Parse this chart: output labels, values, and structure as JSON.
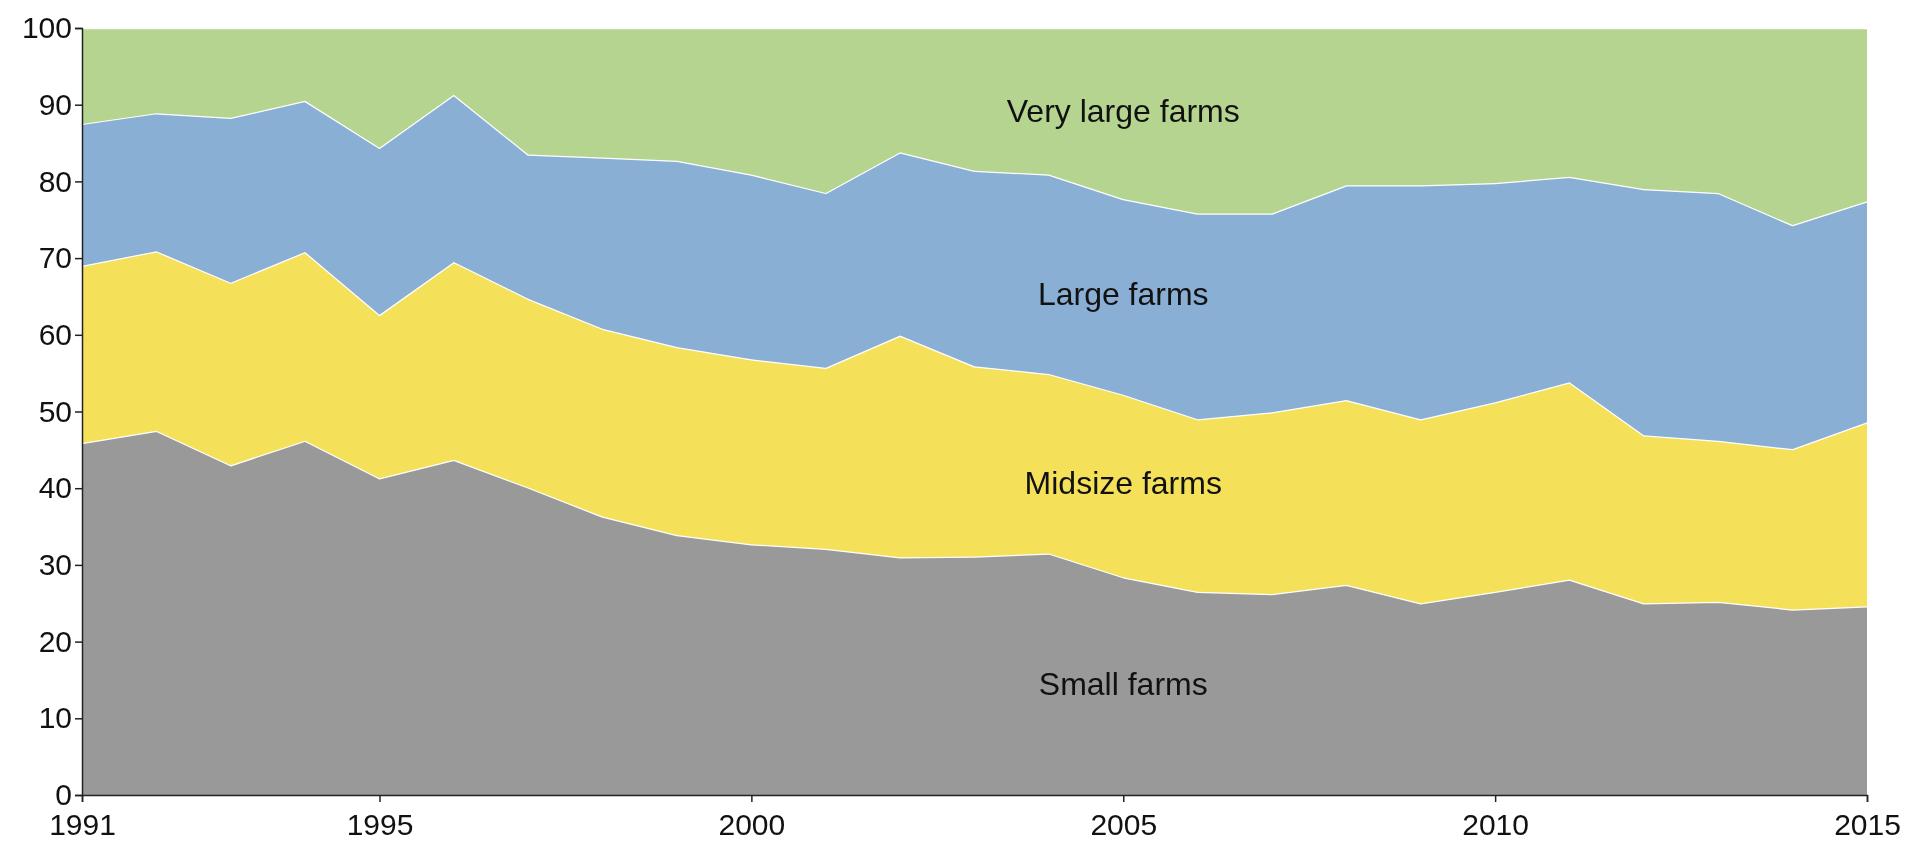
{
  "chart_data": {
    "type": "area",
    "stacked": true,
    "x": [
      1991,
      1992,
      1993,
      1994,
      1995,
      1996,
      1997,
      1998,
      1999,
      2000,
      2001,
      2002,
      2003,
      2004,
      2005,
      2006,
      2007,
      2008,
      2009,
      2010,
      2011,
      2012,
      2013,
      2014,
      2015
    ],
    "xlim": [
      1991,
      2015
    ],
    "xticks": [
      1991,
      1995,
      2000,
      2005,
      2010,
      2015
    ],
    "ylim": [
      0,
      100
    ],
    "yticks": [
      0,
      10,
      20,
      30,
      40,
      50,
      60,
      70,
      80,
      90,
      100
    ],
    "grid": false,
    "series": [
      {
        "name": "Small farms",
        "color": "#999999",
        "values": [
          45.9,
          47.5,
          43.0,
          46.2,
          41.3,
          43.7,
          40.1,
          36.3,
          33.9,
          32.7,
          32.1,
          31.0,
          31.1,
          31.5,
          28.4,
          26.5,
          26.2,
          27.4,
          25.0,
          26.5,
          28.1,
          25.0,
          25.2,
          24.2,
          24.6
        ]
      },
      {
        "name": "Midsize farms",
        "color": "#f5e05a",
        "values": [
          23.1,
          23.4,
          23.8,
          24.6,
          21.3,
          25.8,
          24.6,
          24.5,
          24.5,
          24.1,
          23.6,
          28.9,
          24.8,
          23.4,
          23.8,
          22.5,
          23.7,
          24.1,
          24.0,
          24.7,
          25.7,
          21.9,
          21.0,
          20.9,
          24.0
        ]
      },
      {
        "name": "Large farms",
        "color": "#8aafd4",
        "values": [
          18.5,
          18.0,
          21.5,
          19.7,
          21.8,
          21.8,
          18.8,
          22.3,
          24.3,
          24.1,
          22.8,
          23.9,
          25.5,
          26.0,
          25.5,
          26.8,
          25.9,
          28.0,
          30.5,
          28.6,
          26.8,
          32.1,
          32.3,
          29.2,
          28.8
        ]
      },
      {
        "name": "Very large farms",
        "color": "#b5d48f",
        "values": [
          12.5,
          11.1,
          11.7,
          9.5,
          15.6,
          8.7,
          16.5,
          16.9,
          17.3,
          19.1,
          21.5,
          16.2,
          18.6,
          19.1,
          22.3,
          24.2,
          24.2,
          20.5,
          20.5,
          20.2,
          19.4,
          21.0,
          21.5,
          25.7,
          22.6
        ]
      }
    ]
  }
}
